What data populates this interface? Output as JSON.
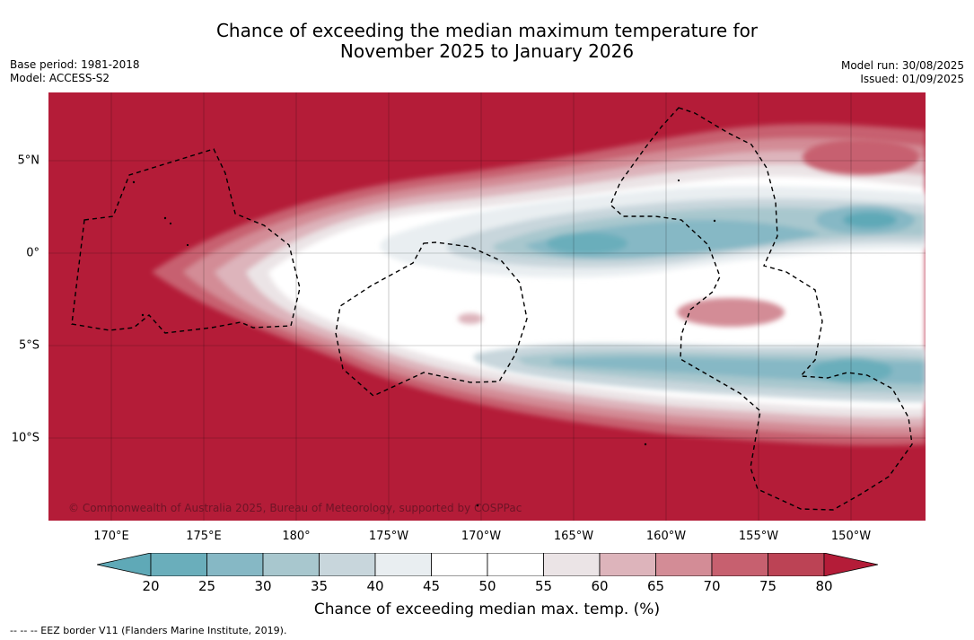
{
  "title_line1": "Chance of exceeding the median maximum temperature for",
  "title_line2": "November 2025 to January 2026",
  "base_period": "Base period: 1981-2018",
  "model": "Model: ACCESS-S2",
  "model_run": "Model run: 30/08/2025",
  "issued": "Issued: 01/09/2025",
  "lon_labels": [
    "170°E",
    "175°E",
    "180°",
    "175°W",
    "170°W",
    "165°W",
    "160°W",
    "155°W",
    "150°W"
  ],
  "lat_labels": [
    "5°N",
    "0°",
    "5°S",
    "10°S"
  ],
  "copyright": "© Commonwealth of Australia 2025, Bureau of Meteorology, supported by COSPPac",
  "colorbar": {
    "title": "Chance of exceeding median max. temp. (%)",
    "ticks": [
      "20",
      "25",
      "30",
      "35",
      "40",
      "45",
      "50",
      "55",
      "60",
      "65",
      "70",
      "75",
      "80"
    ],
    "colors": [
      "#5fa9b7",
      "#6aaebb",
      "#86b8c5",
      "#a8c7ce",
      "#c8d6dc",
      "#e9eef1",
      "#ffffff",
      "#ffffff",
      "#ebe4e6",
      "#ddb4bb",
      "#d38c96",
      "#c7606f",
      "#bc4355",
      "#b41c38"
    ]
  },
  "legend_note": "--  --  -- EEZ border V11 (Flanders Marine Institute, 2019)."
}
